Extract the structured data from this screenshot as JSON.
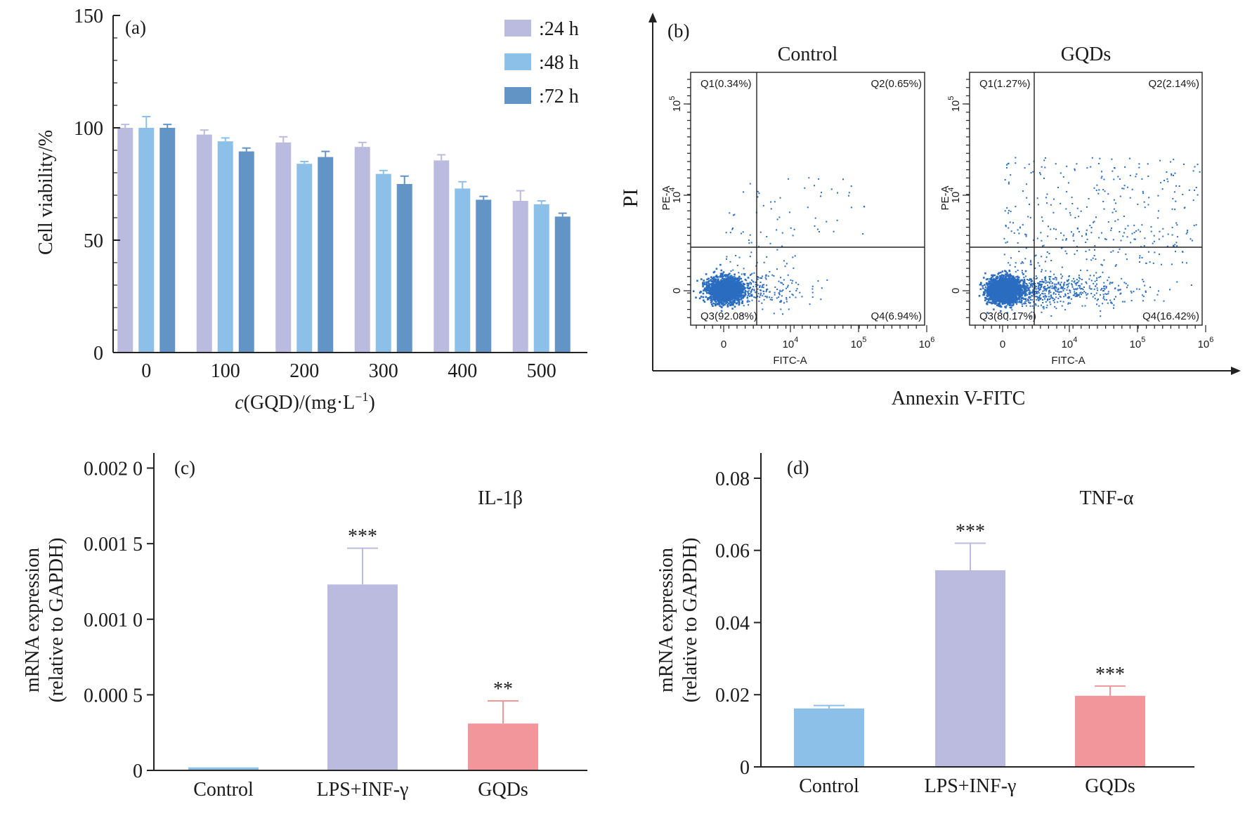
{
  "colors": {
    "h24": "#bbbbe0",
    "h48": "#8dc0e8",
    "h72": "#6294c6",
    "control": "#8dc0e8",
    "lps": "#bbbbe0",
    "gqds": "#f2969c",
    "dots": "#2a6cc0",
    "legend_text": "#4a5f8e"
  },
  "chart_data": [
    {
      "panel": "(a)",
      "type": "bar",
      "ylabel": "Cell viability/%",
      "xlabel_parts": {
        "c": "c",
        "mid": "(GQD)/(mg·L",
        "sup": "−1",
        "end": ")"
      },
      "ylim": [
        0,
        150
      ],
      "yticks": [
        "0",
        "50",
        "100",
        "150"
      ],
      "categories": [
        "0",
        "100",
        "200",
        "300",
        "400",
        "500"
      ],
      "legend_position": "top-right",
      "series": [
        {
          "name": ":24 h",
          "color_key": "h24",
          "values": [
            100,
            97,
            93.5,
            91.5,
            85.5,
            67.5
          ],
          "errors": [
            1.5,
            2,
            2.5,
            2,
            2.5,
            4.5
          ]
        },
        {
          "name": ":48 h",
          "color_key": "h48",
          "values": [
            100,
            94,
            84,
            79.5,
            73,
            66
          ],
          "errors": [
            5,
            1.5,
            1,
            1.5,
            3,
            1.5
          ]
        },
        {
          "name": ":72 h",
          "color_key": "h72",
          "values": [
            100,
            89.5,
            87,
            75,
            68,
            60.5
          ],
          "errors": [
            1.5,
            1.5,
            2.5,
            3.5,
            1.5,
            1.5
          ]
        }
      ]
    },
    {
      "panel": "(b)",
      "type": "scatter",
      "ylabel": "PI",
      "xlabel": "Annexin V-FITC",
      "subplots": [
        {
          "title": "Control",
          "quadrants": {
            "q1": "Q1(0.34%)",
            "q2": "Q2(0.65%)",
            "q3": "Q3(92.08%)",
            "q4": "Q4(6.94%)"
          },
          "xaxis_label": "FITC-A",
          "yaxis_label": "PE-A",
          "xticks": [
            "0",
            "10",
            "10",
            "10"
          ],
          "xtick_exps": [
            "",
            "4",
            "5",
            "6"
          ],
          "yticks": [
            "0",
            "10",
            "10"
          ],
          "ytick_exps": [
            "",
            "4",
            "5"
          ]
        },
        {
          "title": "GQDs",
          "quadrants": {
            "q1": "Q1(1.27%)",
            "q2": "Q2(2.14%)",
            "q3": "Q3(80.17%)",
            "q4": "Q4(16.42%)"
          },
          "xaxis_label": "FITC-A",
          "yaxis_label": "PE-A",
          "xticks": [
            "0",
            "10",
            "10",
            "10"
          ],
          "xtick_exps": [
            "",
            "4",
            "5",
            "6"
          ],
          "yticks": [
            "0",
            "10",
            "10"
          ],
          "ytick_exps": [
            "",
            "4",
            "5"
          ]
        }
      ]
    },
    {
      "panel": "(c)",
      "type": "bar",
      "title": "IL-1β",
      "ylabel_line1": "mRNA expression",
      "ylabel_line2": "(relative to GAPDH)",
      "ylim": [
        0,
        0.0021
      ],
      "yticks": [
        {
          "value": 0,
          "label": "0"
        },
        {
          "value": 0.0005,
          "label": "0.000 5"
        },
        {
          "value": 0.001,
          "label": "0.001 0"
        },
        {
          "value": 0.0015,
          "label": "0.001 5"
        },
        {
          "value": 0.002,
          "label": "0.002 0"
        }
      ],
      "categories": [
        "Control",
        "LPS+INF-γ",
        "GQDs"
      ],
      "values": [
        2e-05,
        0.00123,
        0.00031
      ],
      "errors": [
        0,
        0.00024,
        0.00015
      ],
      "annotations": [
        "",
        "***",
        "**"
      ],
      "color_keys": [
        "control",
        "lps",
        "gqds"
      ]
    },
    {
      "panel": "(d)",
      "type": "bar",
      "title": "TNF-α",
      "ylabel_line1": "mRNA expression",
      "ylabel_line2": "(relative to GAPDH)",
      "ylim": [
        0,
        0.087
      ],
      "yticks": [
        {
          "value": 0,
          "label": "0"
        },
        {
          "value": 0.02,
          "label": "0.02"
        },
        {
          "value": 0.04,
          "label": "0.04"
        },
        {
          "value": 0.06,
          "label": "0.06"
        },
        {
          "value": 0.08,
          "label": "0.08"
        }
      ],
      "categories": [
        "Control",
        "LPS+INF-γ",
        "GQDs"
      ],
      "values": [
        0.0162,
        0.0545,
        0.0197
      ],
      "errors": [
        0.0008,
        0.0075,
        0.0027
      ],
      "annotations": [
        "",
        "***",
        "***"
      ],
      "color_keys": [
        "control",
        "lps",
        "gqds"
      ]
    }
  ]
}
